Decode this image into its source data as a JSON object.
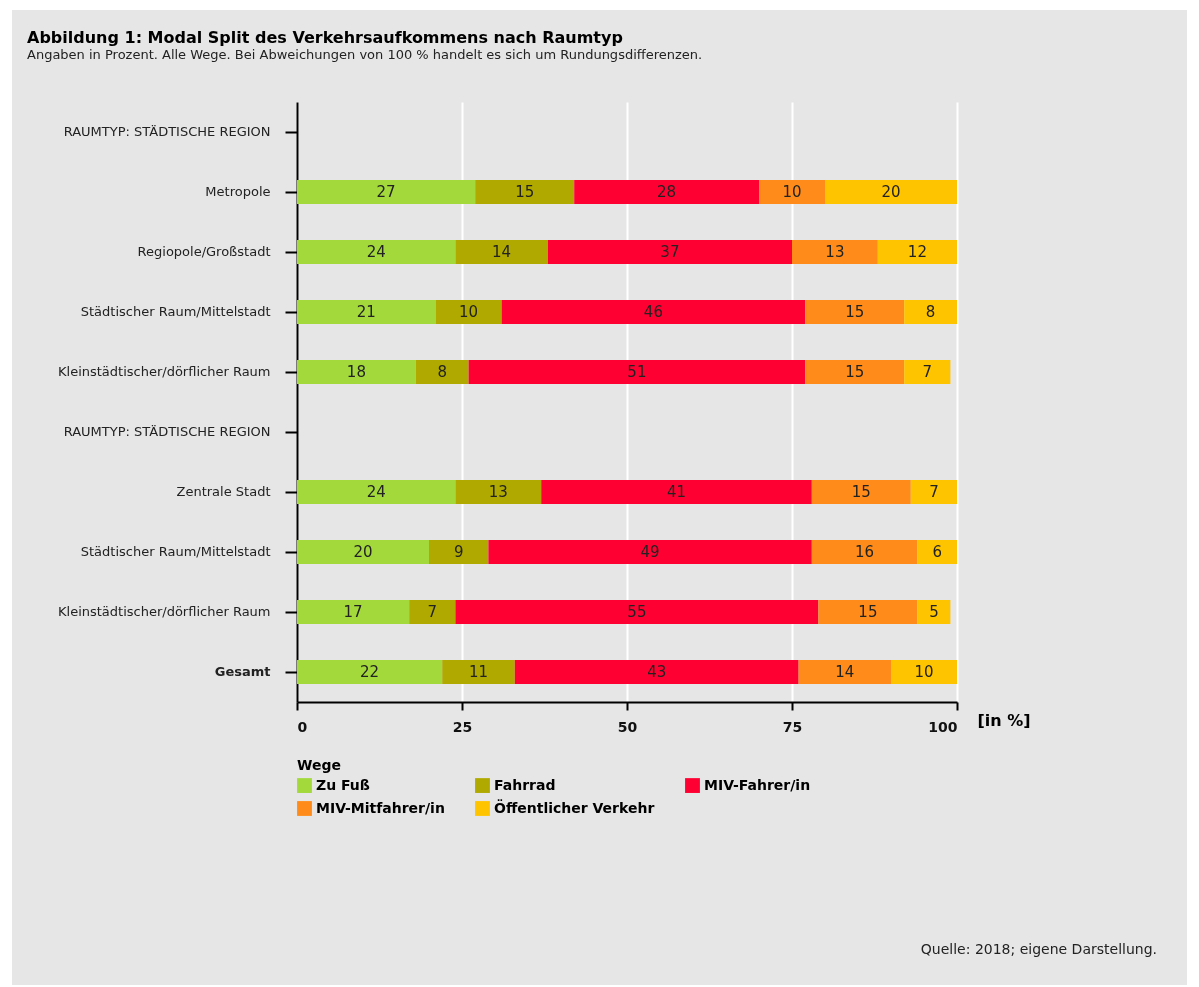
{
  "chart_data": {
    "type": "bar",
    "orientation": "horizontal",
    "stacked": true,
    "title": "Abbildung 1: Modal Split des Verkehrsaufkommens nach Raumtyp",
    "subtitle": "Angaben in Prozent. Alle Wege. Bei Abweichungen von 100 % handelt es sich um Rundungsdifferenzen.",
    "xlabel": "[in %]",
    "legend_title": "Wege",
    "legend": "bottom",
    "grid": "x",
    "data_labels": true,
    "xlim": [
      0,
      100
    ],
    "xticks": [
      0,
      25,
      50,
      75,
      100
    ],
    "categories": [
      "RAUMTYP: STÄDTISCHE REGION",
      "Metropole",
      "Regiopole/Großstadt",
      "Städtischer Raum/Mittelstadt",
      "Kleinstädtischer/dörflicher Raum",
      "RAUMTYP: STÄDTISCHE REGION",
      "Zentrale Stadt",
      "Städtischer Raum/Mittelstadt",
      "Kleinstädtischer/dörflicher Raum",
      "Gesamt"
    ],
    "series": [
      {
        "name": "Zu Fuß",
        "color": "#a3d93b",
        "values": [
          null,
          27,
          24,
          21,
          18,
          null,
          24,
          20,
          17,
          22
        ]
      },
      {
        "name": "Fahrrad",
        "color": "#b0aa00",
        "values": [
          null,
          15,
          14,
          10,
          8,
          null,
          13,
          9,
          7,
          11
        ]
      },
      {
        "name": "MIV-Fahrer/in",
        "color": "#ff0033",
        "values": [
          null,
          28,
          37,
          46,
          51,
          null,
          41,
          49,
          55,
          43
        ]
      },
      {
        "name": "MIV-Mitfahrer/in",
        "color": "#ff8c1a",
        "values": [
          null,
          10,
          13,
          15,
          15,
          null,
          15,
          16,
          15,
          14
        ]
      },
      {
        "name": "Öffentlicher Verkehr",
        "color": "#ffc400",
        "values": [
          null,
          20,
          12,
          8,
          7,
          null,
          7,
          6,
          5,
          10
        ]
      }
    ],
    "annotations": [
      "Quelle: 2018; eigene Darstellung."
    ]
  }
}
